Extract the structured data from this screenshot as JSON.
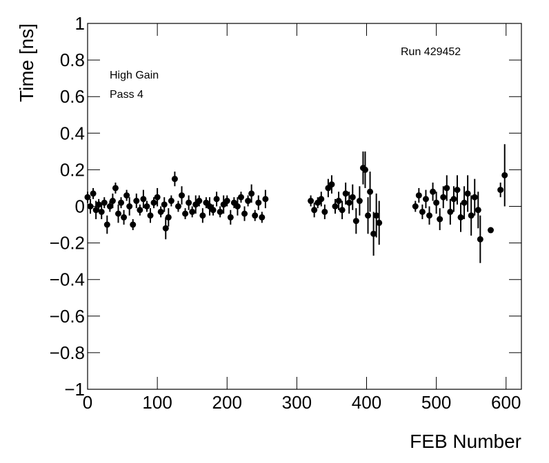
{
  "chart_data": {
    "type": "errorbar-scatter",
    "xlabel": "FEB Number",
    "ylabel": "Time [ns]",
    "annotations": [
      "Run 429452",
      "High Gain",
      "Pass 4"
    ],
    "xlim": [
      0,
      622
    ],
    "ylim": [
      -1,
      1
    ],
    "xticks": [
      0,
      100,
      200,
      300,
      400,
      500,
      600
    ],
    "yticks": [
      {
        "value": -1,
        "label": "−1"
      },
      {
        "value": -0.8,
        "label": "−0.8"
      },
      {
        "value": -0.6,
        "label": "−0.6"
      },
      {
        "value": -0.4,
        "label": "−0.4"
      },
      {
        "value": -0.2,
        "label": "−0.2"
      },
      0,
      0.2,
      0.4,
      0.6,
      0.8,
      1
    ],
    "series": [
      {
        "color": "#000000",
        "x": [
          0,
          4,
          8,
          12,
          16,
          20,
          24,
          28,
          32,
          36,
          40,
          44,
          48,
          52,
          56,
          60,
          65,
          70,
          75,
          80,
          85,
          90,
          95,
          100,
          105,
          110,
          112,
          116,
          120,
          125,
          130,
          135,
          140,
          145,
          150,
          155,
          160,
          165,
          170,
          175,
          180,
          185,
          190,
          195,
          200,
          205,
          210,
          215,
          220,
          225,
          230,
          235,
          240,
          245,
          250,
          255,
          320,
          325,
          330,
          335,
          340,
          345,
          350,
          355,
          360,
          365,
          370,
          375,
          380,
          385,
          390,
          395,
          398,
          402,
          405,
          410,
          414,
          418,
          470,
          475,
          480,
          485,
          490,
          495,
          500,
          505,
          510,
          515,
          520,
          525,
          530,
          535,
          540,
          545,
          550,
          555,
          560,
          563,
          578,
          592,
          598
        ],
        "values": [
          0.05,
          0.0,
          0.07,
          -0.02,
          0.01,
          -0.03,
          0.02,
          -0.1,
          0.0,
          0.03,
          0.1,
          -0.04,
          0.02,
          -0.06,
          0.06,
          0.0,
          -0.1,
          0.03,
          -0.02,
          0.04,
          0.0,
          -0.05,
          0.02,
          0.05,
          -0.03,
          0.01,
          -0.12,
          -0.06,
          0.03,
          0.15,
          0.0,
          0.06,
          -0.04,
          0.02,
          -0.03,
          0.01,
          0.03,
          -0.05,
          0.02,
          0.0,
          -0.02,
          0.04,
          -0.03,
          0.01,
          0.03,
          -0.06,
          0.02,
          0.0,
          0.05,
          -0.04,
          0.03,
          0.07,
          -0.05,
          0.02,
          -0.06,
          0.04,
          0.03,
          -0.02,
          0.02,
          0.04,
          -0.03,
          0.1,
          0.12,
          0.0,
          0.03,
          -0.02,
          0.07,
          0.02,
          0.05,
          -0.08,
          0.03,
          0.21,
          0.2,
          -0.05,
          0.08,
          -0.15,
          -0.05,
          -0.09,
          0.0,
          0.06,
          -0.03,
          0.04,
          -0.05,
          0.08,
          0.02,
          -0.07,
          0.05,
          0.1,
          -0.03,
          0.04,
          0.09,
          -0.06,
          0.02,
          0.07,
          -0.05,
          0.05,
          -0.02,
          -0.18,
          -0.13,
          0.09,
          0.17
        ],
        "errors": [
          0.03,
          0.04,
          0.03,
          0.05,
          0.03,
          0.04,
          0.03,
          0.05,
          0.03,
          0.04,
          0.03,
          0.05,
          0.03,
          0.04,
          0.03,
          0.05,
          0.03,
          0.04,
          0.03,
          0.05,
          0.03,
          0.04,
          0.03,
          0.05,
          0.03,
          0.04,
          0.06,
          0.05,
          0.03,
          0.04,
          0.03,
          0.05,
          0.03,
          0.04,
          0.03,
          0.05,
          0.03,
          0.04,
          0.03,
          0.05,
          0.03,
          0.04,
          0.03,
          0.05,
          0.03,
          0.04,
          0.03,
          0.05,
          0.03,
          0.04,
          0.03,
          0.05,
          0.03,
          0.04,
          0.03,
          0.05,
          0.03,
          0.04,
          0.03,
          0.04,
          0.04,
          0.05,
          0.05,
          0.04,
          0.05,
          0.05,
          0.06,
          0.06,
          0.07,
          0.07,
          0.08,
          0.09,
          0.1,
          0.1,
          0.11,
          0.12,
          0.12,
          0.12,
          0.03,
          0.04,
          0.04,
          0.05,
          0.05,
          0.05,
          0.06,
          0.06,
          0.06,
          0.07,
          0.07,
          0.07,
          0.08,
          0.08,
          0.09,
          0.1,
          0.11,
          0.1,
          0.1,
          0.13,
          0.01,
          0.04,
          0.17
        ]
      }
    ]
  }
}
